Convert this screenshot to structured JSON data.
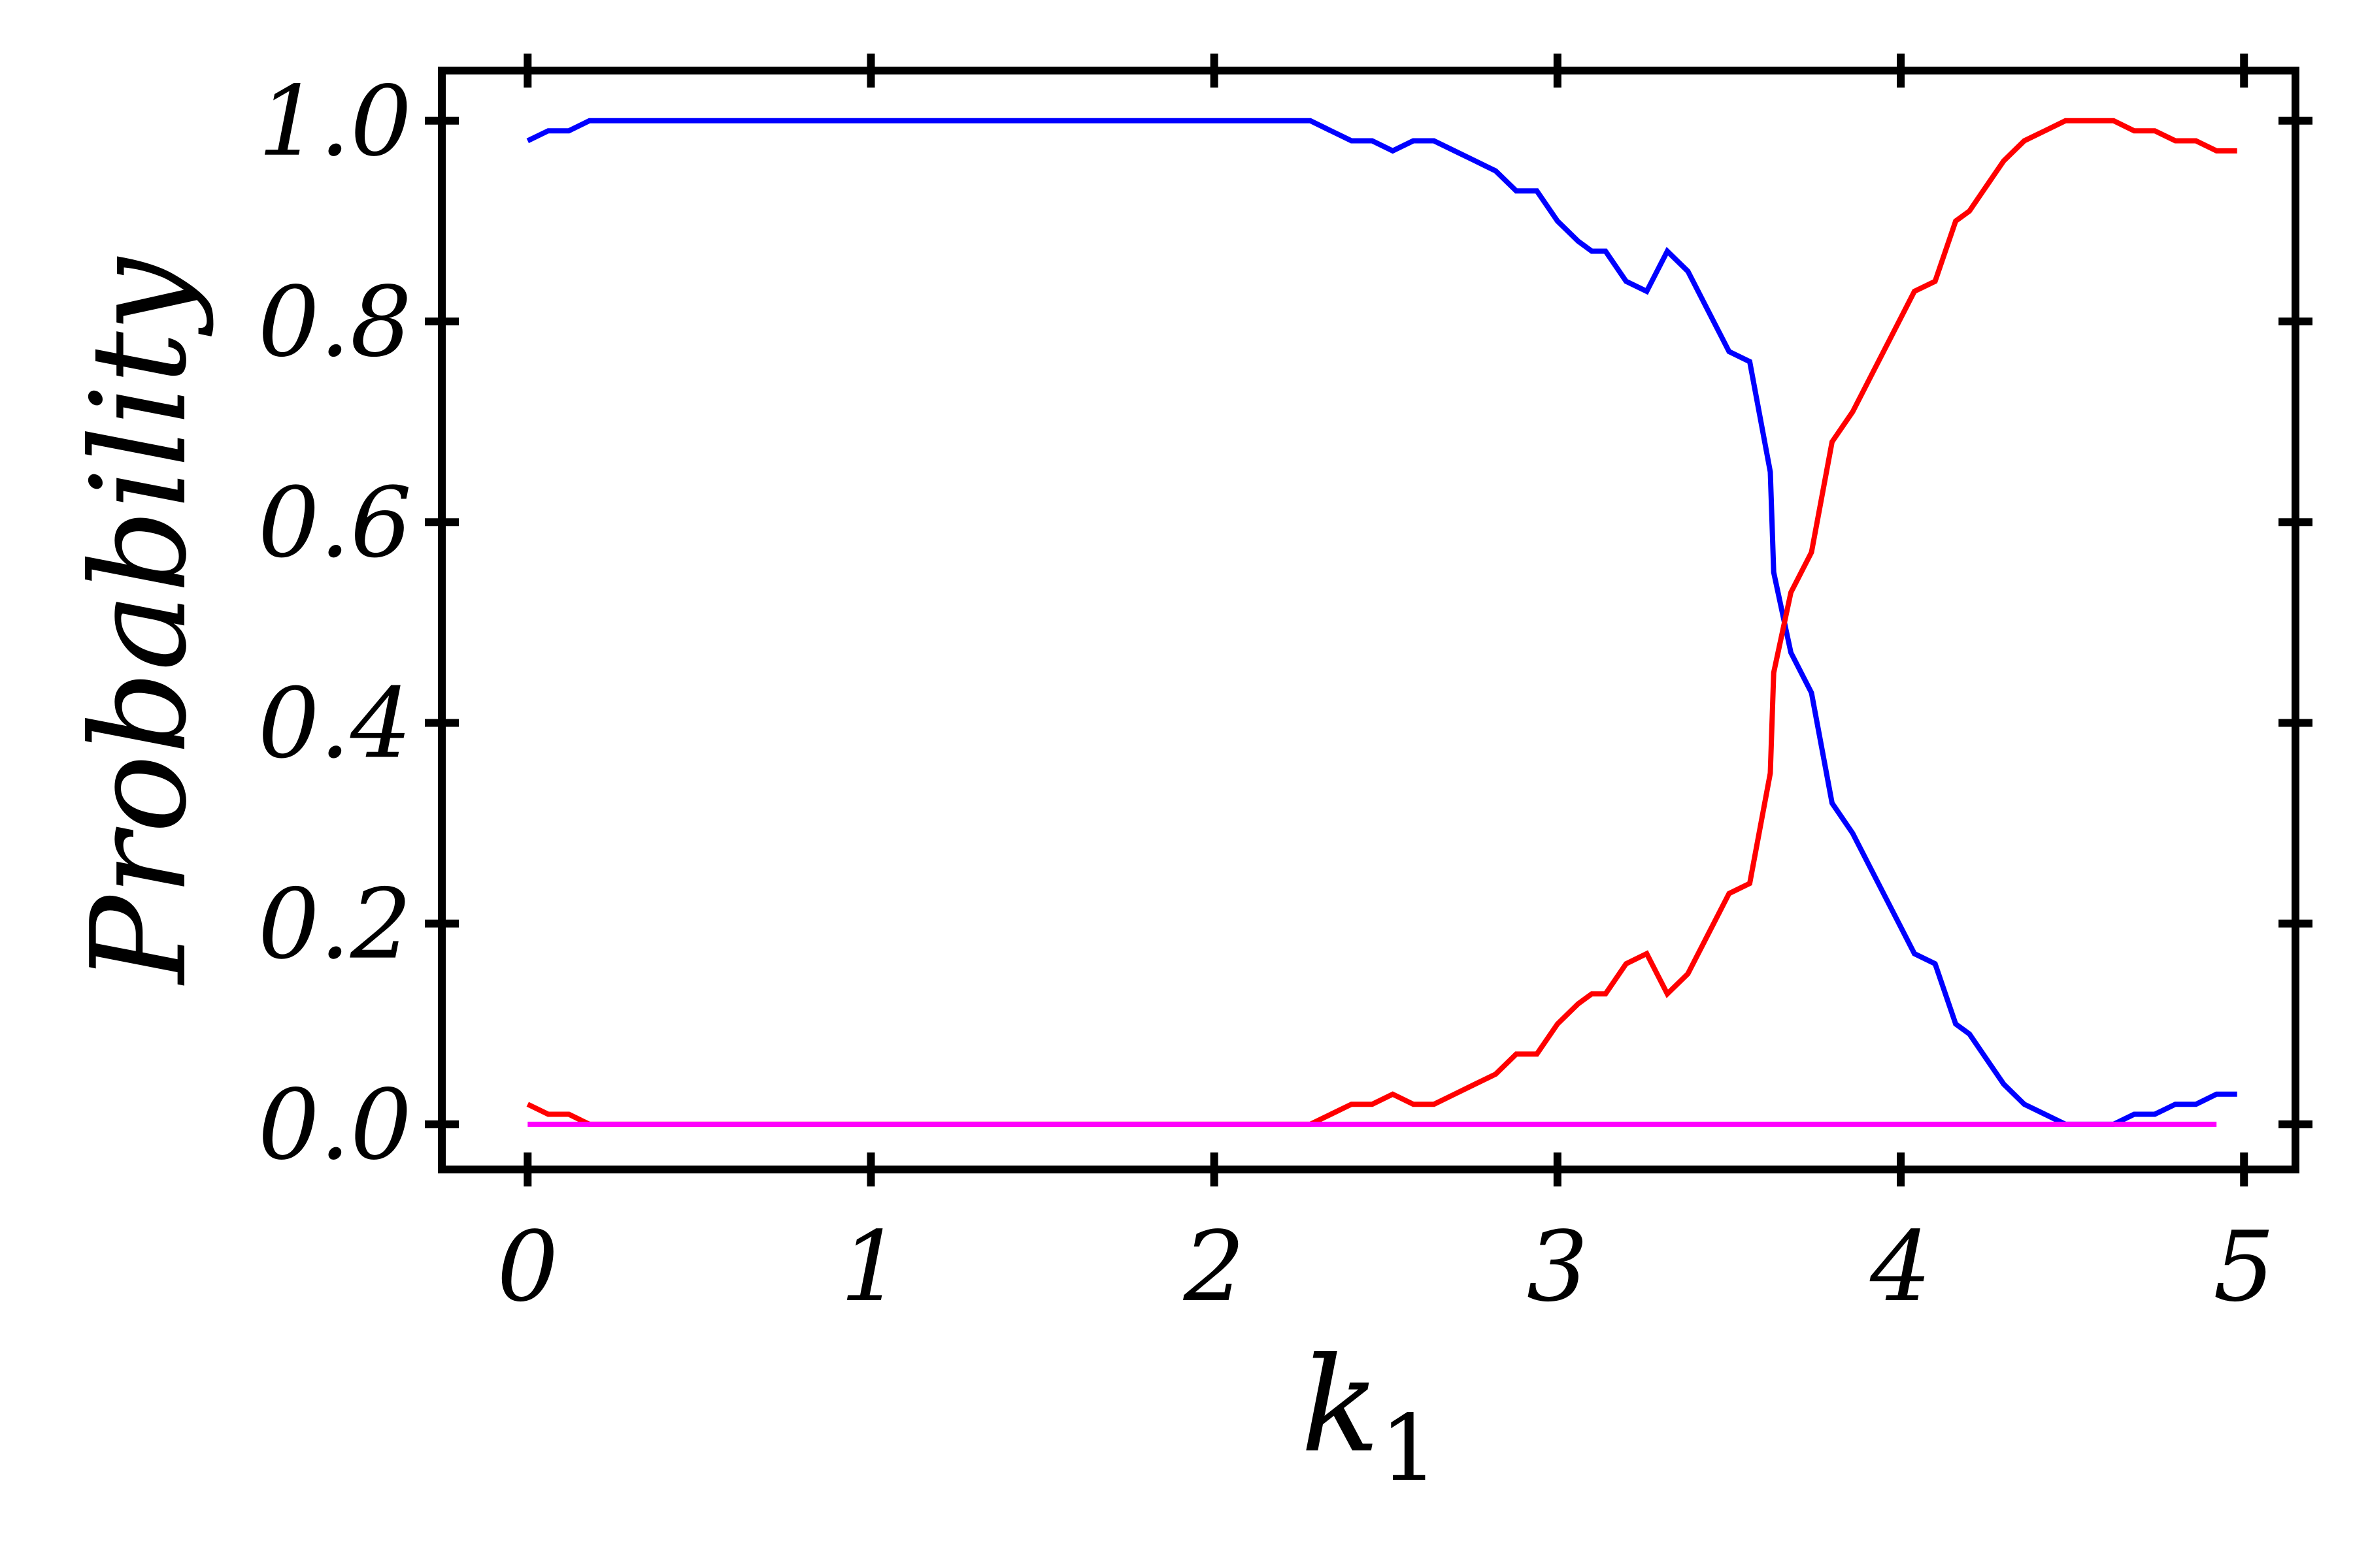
{
  "chart_data": {
    "type": "line",
    "xlabel": "k",
    "xlabel_subscript": "1",
    "ylabel": "Probability",
    "xlim": [
      -0.25,
      5.15
    ],
    "ylim": [
      -0.045,
      1.05
    ],
    "xticks": [
      0,
      1,
      2,
      3,
      4,
      5
    ],
    "xtick_labels": [
      "0",
      "1",
      "2",
      "3",
      "4",
      "5"
    ],
    "yticks": [
      0.0,
      0.2,
      0.4,
      0.6,
      0.8,
      1.0
    ],
    "ytick_labels": [
      "0.0",
      "0.2",
      "0.4",
      "0.6",
      "0.8",
      "1.0"
    ],
    "grid": false,
    "series": [
      {
        "color": "#0000ff",
        "points": [
          [
            0,
            0.98
          ],
          [
            0.06,
            0.99
          ],
          [
            0.12,
            0.99
          ],
          [
            0.18,
            1.0
          ],
          [
            2.28,
            1.0
          ],
          [
            2.34,
            0.99
          ],
          [
            2.4,
            0.98
          ],
          [
            2.46,
            0.98
          ],
          [
            2.52,
            0.97
          ],
          [
            2.58,
            0.98
          ],
          [
            2.64,
            0.98
          ],
          [
            2.7,
            0.97
          ],
          [
            2.76,
            0.96
          ],
          [
            2.82,
            0.95
          ],
          [
            2.88,
            0.93
          ],
          [
            2.94,
            0.93
          ],
          [
            3.0,
            0.9
          ],
          [
            3.06,
            0.88
          ],
          [
            3.1,
            0.87
          ],
          [
            3.14,
            0.87
          ],
          [
            3.2,
            0.84
          ],
          [
            3.26,
            0.83
          ],
          [
            3.32,
            0.87
          ],
          [
            3.38,
            0.85
          ],
          [
            3.44,
            0.81
          ],
          [
            3.5,
            0.77
          ],
          [
            3.56,
            0.76
          ],
          [
            3.62,
            0.65
          ],
          [
            3.63,
            0.55
          ],
          [
            3.68,
            0.47
          ],
          [
            3.74,
            0.43
          ],
          [
            3.8,
            0.32
          ],
          [
            3.86,
            0.29
          ],
          [
            3.92,
            0.25
          ],
          [
            3.98,
            0.21
          ],
          [
            4.04,
            0.17
          ],
          [
            4.1,
            0.16
          ],
          [
            4.16,
            0.1
          ],
          [
            4.2,
            0.09
          ],
          [
            4.24,
            0.07
          ],
          [
            4.3,
            0.04
          ],
          [
            4.36,
            0.02
          ],
          [
            4.42,
            0.01
          ],
          [
            4.48,
            0.0
          ],
          [
            4.62,
            0.0
          ],
          [
            4.68,
            0.01
          ],
          [
            4.74,
            0.01
          ],
          [
            4.8,
            0.02
          ],
          [
            4.86,
            0.02
          ],
          [
            4.92,
            0.03
          ],
          [
            4.98,
            0.03
          ]
        ]
      },
      {
        "color": "#ff0000",
        "points": [
          [
            0,
            0.02
          ],
          [
            0.06,
            0.01
          ],
          [
            0.12,
            0.01
          ],
          [
            0.18,
            0.0
          ],
          [
            2.28,
            0.0
          ],
          [
            2.34,
            0.01
          ],
          [
            2.4,
            0.02
          ],
          [
            2.46,
            0.02
          ],
          [
            2.52,
            0.03
          ],
          [
            2.58,
            0.02
          ],
          [
            2.64,
            0.02
          ],
          [
            2.7,
            0.03
          ],
          [
            2.76,
            0.04
          ],
          [
            2.82,
            0.05
          ],
          [
            2.88,
            0.07
          ],
          [
            2.94,
            0.07
          ],
          [
            3.0,
            0.1
          ],
          [
            3.06,
            0.12
          ],
          [
            3.1,
            0.13
          ],
          [
            3.14,
            0.13
          ],
          [
            3.2,
            0.16
          ],
          [
            3.26,
            0.17
          ],
          [
            3.32,
            0.13
          ],
          [
            3.38,
            0.15
          ],
          [
            3.44,
            0.19
          ],
          [
            3.5,
            0.23
          ],
          [
            3.56,
            0.24
          ],
          [
            3.62,
            0.35
          ],
          [
            3.63,
            0.45
          ],
          [
            3.68,
            0.53
          ],
          [
            3.74,
            0.57
          ],
          [
            3.8,
            0.68
          ],
          [
            3.86,
            0.71
          ],
          [
            3.92,
            0.75
          ],
          [
            3.98,
            0.79
          ],
          [
            4.04,
            0.83
          ],
          [
            4.1,
            0.84
          ],
          [
            4.16,
            0.9
          ],
          [
            4.2,
            0.91
          ],
          [
            4.24,
            0.93
          ],
          [
            4.3,
            0.96
          ],
          [
            4.36,
            0.98
          ],
          [
            4.42,
            0.99
          ],
          [
            4.48,
            1.0
          ],
          [
            4.62,
            1.0
          ],
          [
            4.68,
            0.99
          ],
          [
            4.74,
            0.99
          ],
          [
            4.8,
            0.98
          ],
          [
            4.86,
            0.98
          ],
          [
            4.92,
            0.97
          ],
          [
            4.98,
            0.97
          ]
        ]
      },
      {
        "color": "#ff00ff",
        "points": [
          [
            0,
            0.0
          ],
          [
            4.92,
            0.0
          ]
        ]
      }
    ]
  }
}
